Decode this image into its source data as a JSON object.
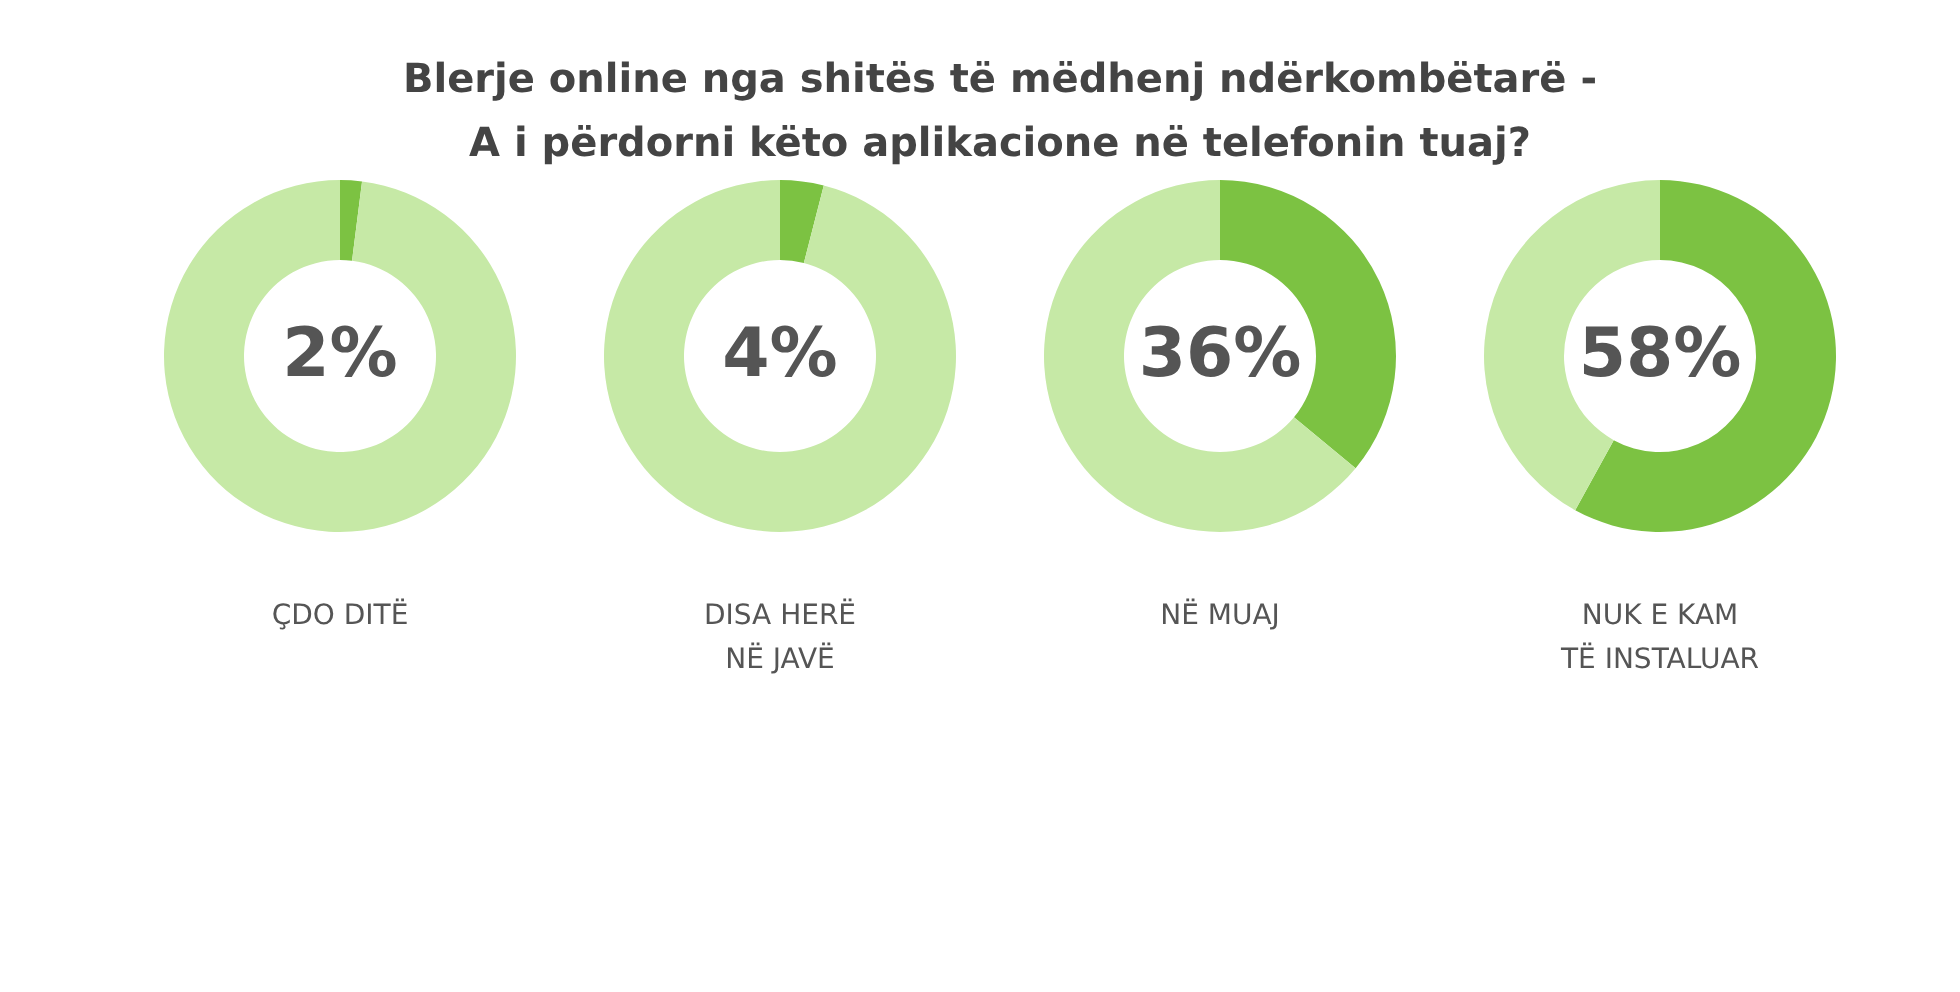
{
  "chart_data": [
    {
      "type": "donut",
      "title": "Blerje online nga shitës të mëdhenj ndërkombëtarë - A i përdorni këto aplikacione në telefonin tuaj?",
      "xlabel": "ÇDO DITË",
      "categories": [
        null,
        null
      ],
      "values": [
        2,
        98
      ],
      "colors": [
        "#7cc242",
        "#c6e9a6"
      ],
      "value_labels": [
        "2%",
        null
      ]
    },
    {
      "type": "donut",
      "xlabel": "DISA HERË NË JAVË",
      "categories": [
        null,
        null
      ],
      "values": [
        4,
        96
      ],
      "colors": [
        "#7cc242",
        "#c6e9a6"
      ],
      "value_labels": [
        "4%",
        null
      ]
    },
    {
      "type": "donut",
      "xlabel": "NË MUAJ",
      "categories": [
        null,
        null
      ],
      "values": [
        36,
        64
      ],
      "colors": [
        "#7cc242",
        "#c6e9a6"
      ],
      "value_labels": [
        "36%",
        null
      ]
    },
    {
      "type": "donut",
      "xlabel": "NUK E KAM TË INSTALUAR",
      "categories": [
        null,
        null
      ],
      "values": [
        58,
        42
      ],
      "colors": [
        "#7cc242",
        "#c6e9a6"
      ],
      "value_labels": [
        "58%",
        null
      ]
    }
  ]
}
